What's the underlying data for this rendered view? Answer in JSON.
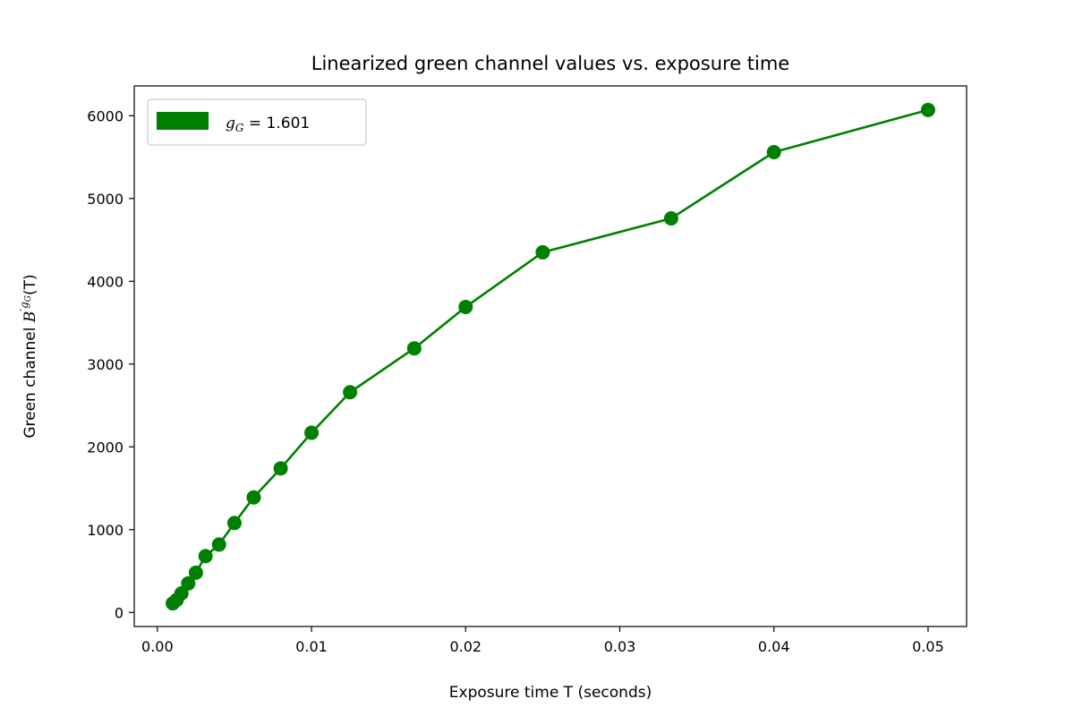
{
  "chart_data": {
    "type": "line",
    "title": "Linearized green channel values vs. exposure time",
    "xlabel": "Exposure time T (seconds)",
    "ylabel": {
      "prefix": "Green channel ",
      "base": "B",
      "prime": "′",
      "exponent": "g",
      "exponent_sub": "G",
      "suffix": "(T)"
    },
    "xlim": [
      -0.0015,
      0.0525
    ],
    "ylim": [
      -170,
      6360
    ],
    "xticks": [
      0.0,
      0.01,
      0.02,
      0.03,
      0.04,
      0.05
    ],
    "xtick_labels": [
      "0.00",
      "0.01",
      "0.02",
      "0.03",
      "0.04",
      "0.05"
    ],
    "yticks": [
      0,
      1000,
      2000,
      3000,
      4000,
      5000,
      6000
    ],
    "ytick_labels": [
      "0",
      "1000",
      "2000",
      "3000",
      "4000",
      "5000",
      "6000"
    ],
    "grid": false,
    "legend_position": "top-left",
    "series": [
      {
        "name": "g_G = 1.601",
        "legend": {
          "var": "g",
          "sub": "G",
          "rest": " = 1.601"
        },
        "color": "#008000",
        "marker": "circle",
        "x": [
          0.001,
          0.00125,
          0.0015625,
          0.002,
          0.0025,
          0.003125,
          0.004,
          0.005,
          0.00625,
          0.008,
          0.01,
          0.0125,
          0.016667,
          0.02,
          0.025,
          0.033333,
          0.04,
          0.05
        ],
        "y": [
          110,
          150,
          230,
          350,
          480,
          680,
          820,
          1080,
          1390,
          1740,
          2170,
          2660,
          3190,
          3690,
          4350,
          4760,
          5560,
          6070
        ]
      }
    ]
  }
}
